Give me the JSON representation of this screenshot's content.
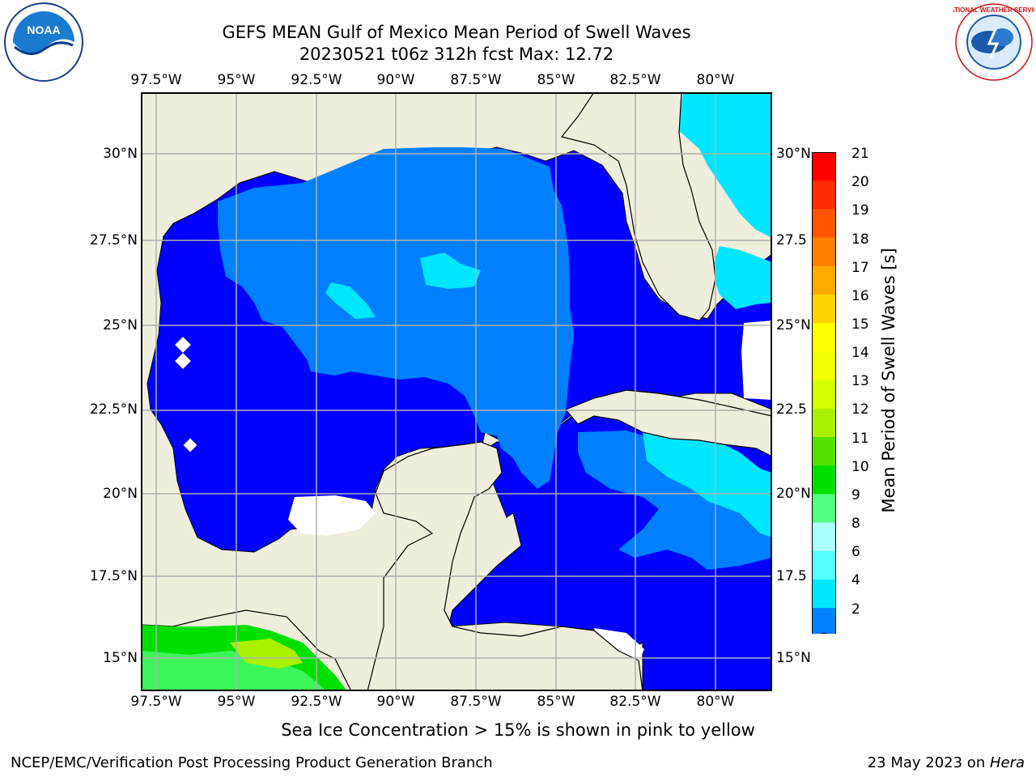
{
  "header": {
    "title_line1": "GEFS MEAN Gulf of Mexico Mean Period of Swell Waves",
    "title_line2": "20230521 t06z 312h fcst   Max: 12.72"
  },
  "logos": {
    "left": {
      "name": "noaa-logo",
      "text": "NOAA"
    },
    "right": {
      "name": "nws-logo",
      "text": "NATIONAL WEATHER SERVICE"
    }
  },
  "map": {
    "lon_labels": [
      "97.5°W",
      "95°W",
      "92.5°W",
      "90°W",
      "87.5°W",
      "85°W",
      "82.5°W",
      "80°W"
    ],
    "lat_labels_left": [
      "30°N",
      "27.5°N",
      "25°N",
      "22.5°N",
      "20°N",
      "17.5°N",
      "15°N"
    ],
    "lat_labels_right": [
      "30°N",
      "27.5",
      "25°N",
      "22.5",
      "20°N",
      "17.5",
      "15°N"
    ],
    "colors": {
      "land": "#efeddc",
      "grid": "#b0b0b0",
      "no_data": "#ffffff"
    }
  },
  "colorbar": {
    "label": "Mean Period of Swell Waves [s]",
    "ticks": [
      "21",
      "20",
      "19",
      "18",
      "17",
      "16",
      "15",
      "14",
      "13",
      "12",
      "11",
      "10",
      "9",
      "8",
      "6",
      "4",
      "2"
    ],
    "colors": [
      "#ff0000",
      "#ff2a00",
      "#ff5500",
      "#ff7f00",
      "#ffaa00",
      "#ffd400",
      "#ffff00",
      "#f0ff00",
      "#d4ff00",
      "#aaf000",
      "#55e000",
      "#00e000",
      "#55ff7f",
      "#aaffff",
      "#55ffff",
      "#00e6ff",
      "#0080ff",
      "#0000ff"
    ]
  },
  "notes": {
    "sea_ice": "Sea Ice Concentration > 15% is shown in pink to yellow"
  },
  "footer": {
    "left": "NCEP/EMC/Verification Post Processing Product Generation Branch",
    "right_prefix": "23 May 2023 on ",
    "right_machine": "Hera"
  }
}
